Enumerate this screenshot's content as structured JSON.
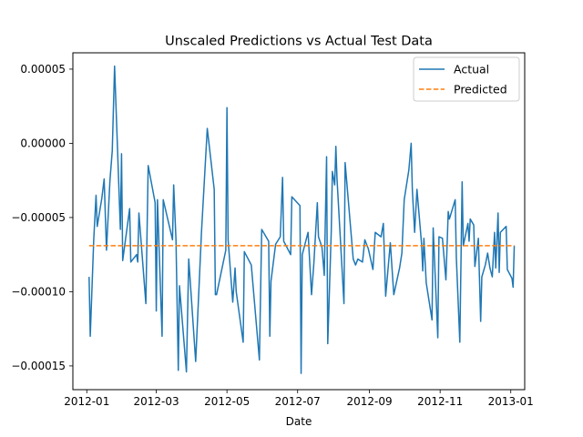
{
  "chart_data": {
    "type": "line",
    "title": "Unscaled Predictions vs Actual Test Data",
    "xlabel": "Date",
    "ylabel": "",
    "x_tick_labels": [
      "2012-01",
      "2012-03",
      "2012-05",
      "2012-07",
      "2012-09",
      "2012-11",
      "2013-01"
    ],
    "y_tick_labels": [
      "0.00005",
      "0.00000",
      "−0.00005",
      "−0.00010",
      "−0.00015"
    ],
    "y_ticks": [
      5e-05,
      0.0,
      -5e-05,
      -0.0001,
      -0.00015
    ],
    "x_ticks": [
      "2012-01-01",
      "2012-03-01",
      "2012-05-01",
      "2012-07-01",
      "2012-09-01",
      "2012-11-01",
      "2013-01-01"
    ],
    "xlim": [
      "2011-12-20",
      "2013-01-13"
    ],
    "ylim": [
      -0.000166,
      6.1e-05
    ],
    "grid": false,
    "legend_position": "top-right",
    "series": [
      {
        "name": "Actual",
        "color": "#1f77b4",
        "style": "solid",
        "points": [
          [
            "2012-01-03",
            -9e-05
          ],
          [
            "2012-01-04",
            -0.00013
          ],
          [
            "2012-01-07",
            -6.5e-05
          ],
          [
            "2012-01-09",
            -3.5e-05
          ],
          [
            "2012-01-10",
            -5.6e-05
          ],
          [
            "2012-01-14",
            -3.7e-05
          ],
          [
            "2012-01-16",
            -2.4e-05
          ],
          [
            "2012-01-18",
            -7.2e-05
          ],
          [
            "2012-01-21",
            -2.5e-05
          ],
          [
            "2012-01-23",
            -5e-06
          ],
          [
            "2012-01-25",
            5.2e-05
          ],
          [
            "2012-01-30",
            -5.8e-05
          ],
          [
            "2012-01-31",
            -7e-06
          ],
          [
            "2012-02-01",
            -7.9e-05
          ],
          [
            "2012-02-07",
            -4.4e-05
          ],
          [
            "2012-02-08",
            -8e-05
          ],
          [
            "2012-02-13",
            -7.5e-05
          ],
          [
            "2012-02-14",
            -8e-05
          ],
          [
            "2012-02-15",
            -4.7e-05
          ],
          [
            "2012-02-21",
            -0.000108
          ],
          [
            "2012-02-23",
            -1.5e-05
          ],
          [
            "2012-02-29",
            -4e-05
          ],
          [
            "2012-03-01",
            -0.000113
          ],
          [
            "2012-03-02",
            -3.8e-05
          ],
          [
            "2012-03-06",
            -0.00013
          ],
          [
            "2012-03-07",
            -3.8e-05
          ],
          [
            "2012-03-15",
            -6.5e-05
          ],
          [
            "2012-03-16",
            -2.8e-05
          ],
          [
            "2012-03-18",
            -6.5e-05
          ],
          [
            "2012-03-20",
            -0.000153
          ],
          [
            "2012-03-21",
            -9.6e-05
          ],
          [
            "2012-03-27",
            -0.000154
          ],
          [
            "2012-03-29",
            -7.8e-05
          ],
          [
            "2012-04-04",
            -0.000147
          ],
          [
            "2012-04-09",
            -6e-05
          ],
          [
            "2012-04-14",
            1e-05
          ],
          [
            "2012-04-20",
            -3.1e-05
          ],
          [
            "2012-04-21",
            -0.000102
          ],
          [
            "2012-04-22",
            -0.000102
          ],
          [
            "2012-04-30",
            -7.2e-05
          ],
          [
            "2012-05-01",
            2.4e-05
          ],
          [
            "2012-05-02",
            -6.5e-05
          ],
          [
            "2012-05-06",
            -0.000107
          ],
          [
            "2012-05-08",
            -8.4e-05
          ],
          [
            "2012-05-09",
            -0.0001
          ],
          [
            "2012-05-15",
            -0.000134
          ],
          [
            "2012-05-16",
            -7.3e-05
          ],
          [
            "2012-05-22",
            -8.2e-05
          ],
          [
            "2012-05-29",
            -0.000146
          ],
          [
            "2012-05-31",
            -5.8e-05
          ],
          [
            "2012-06-06",
            -6.6e-05
          ],
          [
            "2012-06-07",
            -0.00013
          ],
          [
            "2012-06-08",
            -9.3e-05
          ],
          [
            "2012-06-12",
            -6.8e-05
          ],
          [
            "2012-06-16",
            -6.3e-05
          ],
          [
            "2012-06-18",
            -2.3e-05
          ],
          [
            "2012-06-19",
            -6.6e-05
          ],
          [
            "2012-06-25",
            -7.5e-05
          ],
          [
            "2012-06-26",
            -3.6e-05
          ],
          [
            "2012-07-03",
            -4.2e-05
          ],
          [
            "2012-07-04",
            -0.000155
          ],
          [
            "2012-07-05",
            -7.5e-05
          ],
          [
            "2012-07-10",
            -6e-05
          ],
          [
            "2012-07-13",
            -0.000102
          ],
          [
            "2012-07-15",
            -8.1e-05
          ],
          [
            "2012-07-18",
            -4e-05
          ],
          [
            "2012-07-19",
            -6.3e-05
          ],
          [
            "2012-07-22",
            -7e-05
          ],
          [
            "2012-07-24",
            -8.9e-05
          ],
          [
            "2012-07-26",
            -9e-06
          ],
          [
            "2012-07-27",
            -0.000135
          ],
          [
            "2012-07-30",
            -6e-05
          ],
          [
            "2012-07-31",
            -1.9e-05
          ],
          [
            "2012-08-02",
            -2.8e-05
          ],
          [
            "2012-08-03",
            -2e-06
          ],
          [
            "2012-08-04",
            -2.4e-05
          ],
          [
            "2012-08-10",
            -0.000108
          ],
          [
            "2012-08-11",
            -1.3e-05
          ],
          [
            "2012-08-18",
            -7.8e-05
          ],
          [
            "2012-08-20",
            -8.2e-05
          ],
          [
            "2012-08-22",
            -7.8e-05
          ],
          [
            "2012-08-26",
            -8e-05
          ],
          [
            "2012-08-28",
            -6.5e-05
          ],
          [
            "2012-08-31",
            -7.1e-05
          ],
          [
            "2012-09-04",
            -8.5e-05
          ],
          [
            "2012-09-06",
            -6e-05
          ],
          [
            "2012-09-11",
            -6.3e-05
          ],
          [
            "2012-09-13",
            -5.4e-05
          ],
          [
            "2012-09-15",
            -0.000103
          ],
          [
            "2012-09-19",
            -6.7e-05
          ],
          [
            "2012-09-22",
            -0.000102
          ],
          [
            "2012-09-27",
            -8.4e-05
          ],
          [
            "2012-09-29",
            -7.4e-05
          ],
          [
            "2012-10-01",
            -3.8e-05
          ],
          [
            "2012-10-05",
            -1.8e-05
          ],
          [
            "2012-10-07",
            0.0
          ],
          [
            "2012-10-08",
            -3.1e-05
          ],
          [
            "2012-10-10",
            -6e-05
          ],
          [
            "2012-10-12",
            -3.1e-05
          ],
          [
            "2012-10-16",
            -6.8e-05
          ],
          [
            "2012-10-17",
            -8.6e-05
          ],
          [
            "2012-10-18",
            -6.4e-05
          ],
          [
            "2012-10-20",
            -9.4e-05
          ],
          [
            "2012-10-25",
            -0.000119
          ],
          [
            "2012-10-26",
            -5.7e-05
          ],
          [
            "2012-10-30",
            -0.000131
          ],
          [
            "2012-10-31",
            -6.3e-05
          ],
          [
            "2012-11-03",
            -6.4e-05
          ],
          [
            "2012-11-06",
            -9.2e-05
          ],
          [
            "2012-11-08",
            -4.6e-05
          ],
          [
            "2012-11-09",
            -5.1e-05
          ],
          [
            "2012-11-14",
            -3.8e-05
          ],
          [
            "2012-11-15",
            -7.7e-05
          ],
          [
            "2012-11-18",
            -0.000134
          ],
          [
            "2012-11-20",
            -2.6e-05
          ],
          [
            "2012-11-21",
            -6.9e-05
          ],
          [
            "2012-11-25",
            -5.4e-05
          ],
          [
            "2012-11-26",
            -6.6e-05
          ],
          [
            "2012-11-27",
            -5.1e-05
          ],
          [
            "2012-11-30",
            -5.5e-05
          ],
          [
            "2012-12-01",
            -8.3e-05
          ],
          [
            "2012-12-04",
            -6.4e-05
          ],
          [
            "2012-12-06",
            -0.00012
          ],
          [
            "2012-12-07",
            -9e-05
          ],
          [
            "2012-12-10",
            -8.2e-05
          ],
          [
            "2012-12-12",
            -7.4e-05
          ],
          [
            "2012-12-14",
            -8.4e-05
          ],
          [
            "2012-12-16",
            -9e-05
          ],
          [
            "2012-12-18",
            -6e-05
          ],
          [
            "2012-12-19",
            -8.4e-05
          ],
          [
            "2012-12-21",
            -4.7e-05
          ],
          [
            "2012-12-22",
            -8.7e-05
          ],
          [
            "2012-12-23",
            -6e-05
          ],
          [
            "2012-12-28",
            -5.6e-05
          ],
          [
            "2012-12-29",
            -8.5e-05
          ],
          [
            "2013-01-02",
            -9.1e-05
          ],
          [
            "2013-01-03",
            -9.7e-05
          ],
          [
            "2013-01-04",
            -6.9e-05
          ]
        ]
      },
      {
        "name": "Predicted",
        "color": "#ff7f0e",
        "style": "dashed",
        "points": [
          [
            "2012-01-03",
            -6.9e-05
          ],
          [
            "2013-01-04",
            -6.9e-05
          ]
        ]
      }
    ]
  }
}
